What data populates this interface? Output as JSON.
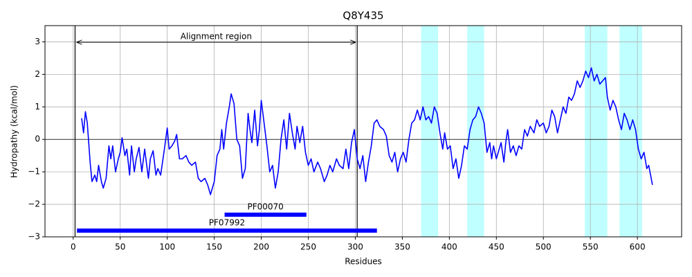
{
  "chart_data": {
    "type": "line",
    "title": "Q8Y435",
    "xlabel": "Residues",
    "ylabel": "Hydropathy (kcal/mol)",
    "xlim": [
      -30,
      647
    ],
    "ylim": [
      -3,
      3.5
    ],
    "xticks": [
      0,
      50,
      100,
      150,
      200,
      250,
      300,
      350,
      400,
      450,
      500,
      550,
      600
    ],
    "yticks": [
      {
        "value": -3,
        "label": "−3"
      },
      {
        "value": -2,
        "label": "−2"
      },
      {
        "value": -1,
        "label": "−1"
      },
      0,
      1,
      2,
      3
    ],
    "grid": true,
    "color": "#0000ff",
    "x": [
      9,
      11,
      13,
      15,
      18,
      20,
      23,
      25,
      27,
      30,
      32,
      35,
      38,
      40,
      42,
      45,
      48,
      50,
      52,
      55,
      57,
      60,
      62,
      65,
      67,
      70,
      73,
      76,
      80,
      82,
      85,
      88,
      90,
      93,
      97,
      100,
      102,
      105,
      108,
      110,
      113,
      116,
      120,
      123,
      126,
      130,
      133,
      136,
      140,
      143,
      146,
      150,
      153,
      156,
      158,
      160,
      163,
      166,
      168,
      171,
      174,
      177,
      180,
      183,
      186,
      188,
      190,
      193,
      196,
      198,
      200,
      203,
      206,
      209,
      212,
      215,
      218,
      221,
      224,
      227,
      230,
      233,
      236,
      238,
      241,
      244,
      247,
      250,
      253,
      256,
      260,
      263,
      267,
      270,
      273,
      276,
      280,
      283,
      287,
      290,
      293,
      296,
      299,
      302,
      305,
      308,
      311,
      314,
      317,
      320,
      323,
      326,
      330,
      333,
      336,
      339,
      342,
      345,
      348,
      351,
      354,
      357,
      360,
      363,
      366,
      369,
      372,
      375,
      378,
      381,
      384,
      387,
      390,
      393,
      395,
      398,
      401,
      404,
      407,
      410,
      413,
      416,
      419,
      422,
      425,
      428,
      431,
      434,
      437,
      440,
      443,
      445,
      447,
      450,
      453,
      455,
      458,
      460,
      462,
      465,
      468,
      471,
      474,
      477,
      480,
      483,
      486,
      490,
      493,
      496,
      500,
      503,
      506,
      509,
      512,
      515,
      518,
      521,
      524,
      527,
      530,
      533,
      536,
      539,
      542,
      545,
      548,
      551,
      554,
      557,
      560,
      563,
      566,
      568,
      571,
      574,
      577,
      580,
      583,
      586,
      589,
      592,
      595,
      598,
      601,
      604,
      607,
      610,
      612,
      614,
      616
    ],
    "values": [
      0.65,
      0.2,
      0.85,
      0.5,
      -0.7,
      -1.3,
      -1.1,
      -1.3,
      -0.8,
      -1.3,
      -1.5,
      -1.2,
      -0.2,
      -0.6,
      -0.2,
      -1.0,
      -0.6,
      -0.4,
      0.05,
      -0.5,
      -0.3,
      -1.1,
      -0.2,
      -1.0,
      -0.6,
      -0.25,
      -1.0,
      -0.3,
      -1.2,
      -0.6,
      -0.35,
      -1.1,
      -0.9,
      -1.1,
      -0.3,
      0.35,
      -0.3,
      -0.2,
      -0.05,
      0.15,
      -0.6,
      -0.6,
      -0.5,
      -0.7,
      -0.8,
      -0.7,
      -1.2,
      -1.3,
      -1.2,
      -1.4,
      -1.7,
      -1.3,
      -0.5,
      -0.3,
      0.3,
      -0.3,
      0.5,
      1.0,
      1.4,
      1.1,
      0.0,
      -0.2,
      -1.2,
      -0.9,
      0.8,
      0.3,
      -0.1,
      0.9,
      -0.2,
      0.3,
      1.2,
      0.5,
      -0.2,
      -1.0,
      -0.8,
      -1.5,
      -1.0,
      0.0,
      0.6,
      -0.3,
      0.8,
      0.2,
      -0.3,
      0.4,
      -0.1,
      0.4,
      -0.4,
      -0.8,
      -0.6,
      -1.0,
      -0.7,
      -0.9,
      -1.3,
      -1.1,
      -0.8,
      -1.0,
      -0.6,
      -0.8,
      -0.9,
      -0.3,
      -0.9,
      -0.1,
      0.3,
      -0.6,
      -0.9,
      -0.5,
      -1.3,
      -0.7,
      -0.2,
      0.5,
      0.6,
      0.4,
      0.3,
      0.1,
      -0.5,
      -0.7,
      -0.4,
      -1.0,
      -0.6,
      -0.4,
      -0.7,
      0.0,
      0.5,
      0.6,
      0.9,
      0.6,
      1.0,
      0.6,
      0.7,
      0.5,
      1.0,
      0.8,
      0.2,
      -0.3,
      0.2,
      -0.3,
      -0.2,
      -0.9,
      -0.6,
      -1.2,
      -0.8,
      -0.2,
      -0.3,
      0.3,
      0.6,
      0.7,
      1.0,
      0.8,
      0.5,
      -0.4,
      -0.1,
      -0.6,
      -0.2,
      -0.6,
      -0.3,
      -0.1,
      -0.7,
      -0.1,
      0.3,
      -0.4,
      -0.2,
      -0.5,
      -0.2,
      -0.3,
      0.3,
      0.1,
      0.4,
      0.2,
      0.6,
      0.4,
      0.5,
      0.2,
      0.4,
      0.9,
      0.7,
      0.2,
      0.6,
      1.0,
      0.8,
      1.3,
      1.2,
      1.4,
      1.8,
      1.6,
      1.8,
      2.1,
      1.9,
      2.2,
      1.8,
      2.0,
      1.7,
      1.8,
      1.9,
      1.3,
      0.9,
      1.2,
      1.0,
      0.6,
      0.3,
      0.8,
      0.6,
      0.3,
      0.6,
      0.3,
      -0.3,
      -0.6,
      -0.4,
      -0.9,
      -0.8,
      -1.1,
      -1.4
    ],
    "spans": [
      [
        370,
        388
      ],
      [
        419,
        437
      ],
      [
        544,
        568
      ],
      [
        581,
        605
      ]
    ],
    "span_color": "#c0ffff",
    "alignment": {
      "label": "Alignment region",
      "start": 2,
      "end": 302
    },
    "domains": [
      {
        "name": "PF00070",
        "start": 161,
        "end": 248
      },
      {
        "name": "PF07992",
        "start": 4,
        "end": 323
      }
    ],
    "domain_color": "#0000ff"
  }
}
